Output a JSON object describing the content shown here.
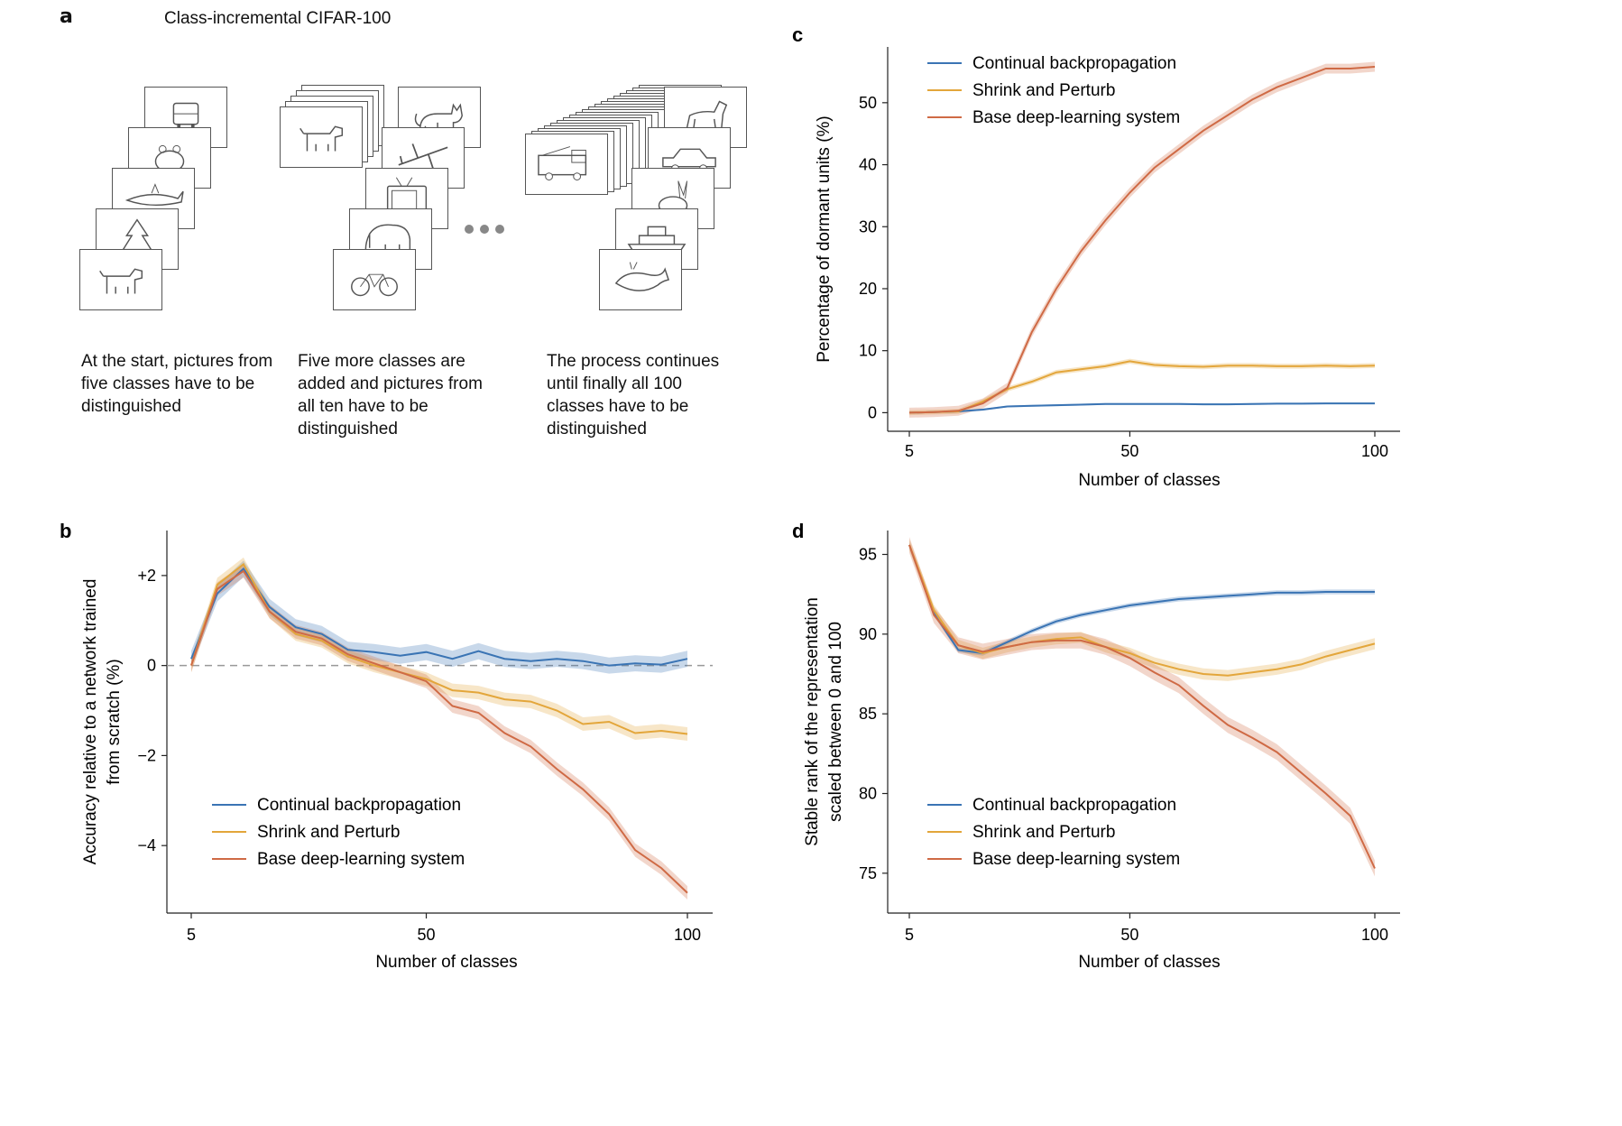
{
  "panel_a": {
    "letter": "a",
    "title": "Class-incremental CIFAR-100",
    "captions": [
      "At the start, pictures from five classes have to be distinguished",
      "Five more classes are added and pictures from all ten have to be distinguished",
      "The process continues until finally all 100 classes have to be distinguished"
    ],
    "stack1_icons": [
      "train-icon",
      "frog-icon",
      "shark-icon",
      "tree-icon",
      "dog-icon"
    ],
    "stack2_icons": [
      "cat-icon",
      "plane-icon",
      "tv-icon",
      "elephant-icon",
      "bicycle-icon"
    ],
    "stack2_back_icon": "dog-icon",
    "stack3_icons": [
      "horse-icon",
      "car-icon",
      "rabbit-icon",
      "ship-icon",
      "whale-icon"
    ],
    "stack3_back_icon": "firetruck-icon",
    "ellipsis_icon": "ellipsis-icon"
  },
  "colors": {
    "continual": "#3a74b4",
    "shrink": "#e3a63b",
    "base": "#cf6a45"
  },
  "chart_data": [
    {
      "id": "b",
      "letter": "b",
      "type": "line",
      "xlabel": "Number of classes",
      "ylabel": [
        "Accuracy relative to a network trained",
        "from scratch (%)"
      ],
      "xticks": [
        5,
        50,
        100
      ],
      "xtick_labels": [
        "5",
        "50",
        "100"
      ],
      "yticks": [
        -4,
        -2,
        0,
        2
      ],
      "ytick_labels": [
        "−4",
        "−2",
        "0",
        "+2"
      ],
      "xlim": [
        5,
        100
      ],
      "ylim": [
        -5.5,
        3
      ],
      "reference_line": 0,
      "legend": "lower-left",
      "x": [
        5,
        10,
        15,
        20,
        25,
        30,
        35,
        40,
        45,
        50,
        55,
        60,
        65,
        70,
        75,
        80,
        85,
        90,
        95,
        100
      ],
      "series": [
        {
          "name": "Continual backpropagation",
          "key": "continual",
          "values": [
            0.15,
            1.6,
            2.15,
            1.3,
            0.85,
            0.7,
            0.35,
            0.3,
            0.22,
            0.3,
            0.15,
            0.32,
            0.15,
            0.1,
            0.15,
            0.1,
            0.0,
            0.05,
            0.02,
            0.15
          ],
          "band": 0.18
        },
        {
          "name": "Shrink and Perturb",
          "key": "shrink",
          "values": [
            0.0,
            1.8,
            2.25,
            1.2,
            0.7,
            0.55,
            0.2,
            0.0,
            -0.15,
            -0.3,
            -0.55,
            -0.6,
            -0.75,
            -0.8,
            -1.0,
            -1.3,
            -1.25,
            -1.5,
            -1.45,
            -1.52
          ],
          "band": 0.15
        },
        {
          "name": "Base deep-learning system",
          "key": "base",
          "values": [
            0.0,
            1.7,
            2.1,
            1.2,
            0.75,
            0.6,
            0.25,
            0.05,
            -0.15,
            -0.35,
            -0.9,
            -1.05,
            -1.5,
            -1.8,
            -2.3,
            -2.75,
            -3.3,
            -4.1,
            -4.5,
            -5.05
          ],
          "band": 0.15
        }
      ]
    },
    {
      "id": "c",
      "letter": "c",
      "type": "line",
      "xlabel": "Number of classes",
      "ylabel": [
        "Percentage of dormant units (%)"
      ],
      "xticks": [
        5,
        50,
        100
      ],
      "xtick_labels": [
        "5",
        "50",
        "100"
      ],
      "yticks": [
        0,
        10,
        20,
        30,
        40,
        50
      ],
      "ytick_labels": [
        "0",
        "10",
        "20",
        "30",
        "40",
        "50"
      ],
      "xlim": [
        5,
        100
      ],
      "ylim": [
        -3,
        59
      ],
      "legend": "top-left",
      "x": [
        5,
        10,
        15,
        20,
        25,
        30,
        35,
        40,
        45,
        50,
        55,
        60,
        65,
        70,
        75,
        80,
        85,
        90,
        95,
        100
      ],
      "series": [
        {
          "name": "Continual backpropagation",
          "key": "continual",
          "values": [
            0,
            0.1,
            0.2,
            0.5,
            1.0,
            1.1,
            1.2,
            1.3,
            1.4,
            1.4,
            1.4,
            1.4,
            1.35,
            1.35,
            1.4,
            1.45,
            1.45,
            1.5,
            1.5,
            1.5
          ],
          "band": 0.15
        },
        {
          "name": "Shrink and Perturb",
          "key": "shrink",
          "values": [
            0,
            0.1,
            0.2,
            1.8,
            3.8,
            5.0,
            6.5,
            7.0,
            7.5,
            8.3,
            7.7,
            7.5,
            7.4,
            7.6,
            7.6,
            7.5,
            7.5,
            7.6,
            7.5,
            7.6
          ],
          "band": 0.4
        },
        {
          "name": "Base deep-learning system",
          "key": "base",
          "values": [
            0,
            0.1,
            0.3,
            1.5,
            4.0,
            13.0,
            20.0,
            26.0,
            31.0,
            35.5,
            39.5,
            42.5,
            45.5,
            48.0,
            50.5,
            52.5,
            54.0,
            55.5,
            55.5,
            55.8
          ],
          "band": 0.8
        }
      ]
    },
    {
      "id": "d",
      "letter": "d",
      "type": "line",
      "xlabel": "Number of classes",
      "ylabel": [
        "Stable rank of the representation",
        "scaled between 0 and 100"
      ],
      "xticks": [
        5,
        50,
        100
      ],
      "xtick_labels": [
        "5",
        "50",
        "100"
      ],
      "yticks": [
        75,
        80,
        85,
        90,
        95
      ],
      "ytick_labels": [
        "75",
        "80",
        "85",
        "90",
        "95"
      ],
      "xlim": [
        5,
        100
      ],
      "ylim": [
        72.5,
        96.5
      ],
      "legend": "lower-left",
      "x": [
        5,
        10,
        15,
        20,
        25,
        30,
        35,
        40,
        45,
        50,
        55,
        60,
        65,
        70,
        75,
        80,
        85,
        90,
        95,
        100
      ],
      "series": [
        {
          "name": "Continual backpropagation",
          "key": "continual",
          "values": [
            95.6,
            91.3,
            89.0,
            88.8,
            89.5,
            90.2,
            90.8,
            91.2,
            91.5,
            91.8,
            92.0,
            92.2,
            92.3,
            92.4,
            92.5,
            92.6,
            92.6,
            92.65,
            92.65,
            92.65
          ],
          "band": 0.15
        },
        {
          "name": "Shrink and Perturb",
          "key": "shrink",
          "values": [
            95.6,
            91.5,
            89.3,
            88.8,
            89.2,
            89.5,
            89.7,
            89.8,
            89.2,
            88.8,
            88.2,
            87.8,
            87.5,
            87.4,
            87.6,
            87.8,
            88.1,
            88.6,
            89.0,
            89.4
          ],
          "band": 0.35
        },
        {
          "name": "Base deep-learning system",
          "key": "base",
          "values": [
            95.6,
            91.2,
            89.3,
            88.9,
            89.2,
            89.5,
            89.6,
            89.6,
            89.2,
            88.5,
            87.6,
            86.8,
            85.5,
            84.3,
            83.5,
            82.6,
            81.3,
            80.0,
            78.6,
            75.3
          ],
          "band": 0.5
        }
      ]
    }
  ]
}
